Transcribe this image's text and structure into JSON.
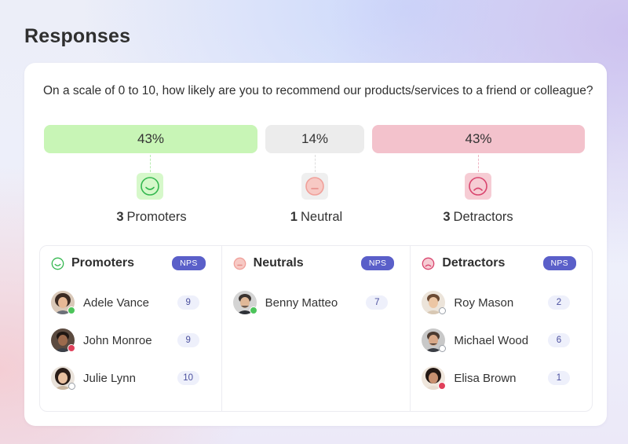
{
  "page": {
    "title": "Responses"
  },
  "question": "On a scale of 0 to 10, how likely are you to recommend our products/services to a friend or colleague?",
  "summary": {
    "promoters": {
      "percent": "43%",
      "count": "3",
      "label": "Promoters",
      "face_icon": "smile-face-icon",
      "color": "#c8f5b6"
    },
    "neutral": {
      "percent": "14%",
      "count": "1",
      "label": "Neutral",
      "face_icon": "neutral-face-icon",
      "color": "#ececec"
    },
    "detractors": {
      "percent": "43%",
      "count": "3",
      "label": "Detractors",
      "face_icon": "sad-face-icon",
      "color": "#f3c2cc"
    }
  },
  "columns": {
    "promoters": {
      "title": "Promoters",
      "badge": "NPS",
      "icon": "smile-face-icon",
      "people": [
        {
          "name": "Adele Vance",
          "score": "9",
          "status": "online"
        },
        {
          "name": "John Monroe",
          "score": "9",
          "status": "busy"
        },
        {
          "name": "Julie Lynn",
          "score": "10",
          "status": "offline"
        }
      ]
    },
    "neutrals": {
      "title": "Neutrals",
      "badge": "NPS",
      "icon": "neutral-face-icon",
      "people": [
        {
          "name": "Benny Matteo",
          "score": "7",
          "status": "online"
        }
      ]
    },
    "detractors": {
      "title": "Detractors",
      "badge": "NPS",
      "icon": "sad-face-icon",
      "people": [
        {
          "name": "Roy Mason",
          "score": "2",
          "status": "offline"
        },
        {
          "name": "Michael Wood",
          "score": "6",
          "status": "offline"
        },
        {
          "name": "Elisa Brown",
          "score": "1",
          "status": "busy"
        }
      ]
    }
  },
  "colors": {
    "accent": "#5a5fc9",
    "promoter": "#3cbf5a",
    "neutral": "#f0a6a6",
    "detractor": "#d94a72"
  }
}
